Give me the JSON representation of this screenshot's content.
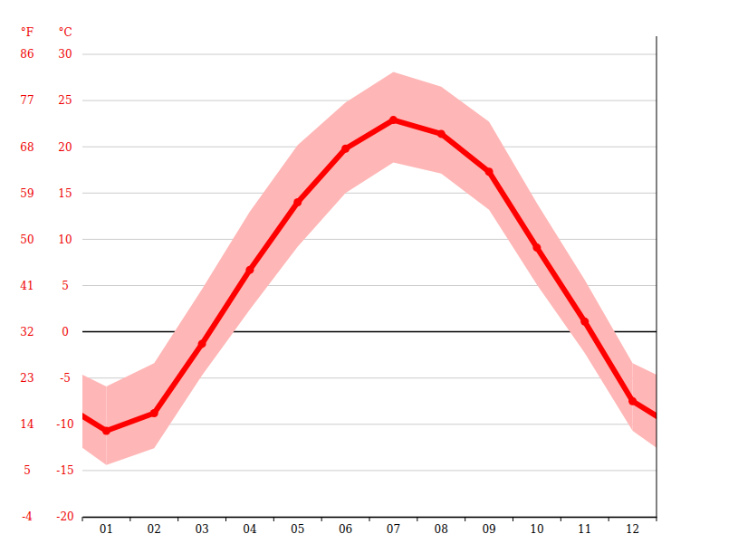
{
  "chart_data": {
    "type": "line",
    "y_label": "°C",
    "y2_label": "°F",
    "categories": [
      "01",
      "02",
      "03",
      "04",
      "05",
      "06",
      "07",
      "08",
      "09",
      "10",
      "11",
      "12"
    ],
    "series": [
      {
        "type": "line",
        "color": "#ff0000",
        "marker": "circle",
        "values": [
          -10.7,
          -8.8,
          -1.3,
          6.7,
          14.0,
          19.8,
          22.9,
          21.4,
          17.3,
          9.1,
          1.1,
          -7.5
        ]
      },
      {
        "type": "range",
        "color": "#ffb6b6",
        "low": [
          -14.4,
          -12.6,
          -4.7,
          2.4,
          9.2,
          15.0,
          18.3,
          17.1,
          13.2,
          5.1,
          -2.3,
          -10.7
        ],
        "high": [
          -5.9,
          -3.4,
          4.6,
          13.0,
          20.2,
          24.8,
          28.1,
          26.5,
          22.7,
          13.9,
          5.6,
          -3.4
        ]
      }
    ],
    "ylim": [
      -20,
      30
    ],
    "yticks": [
      -20,
      -15,
      -10,
      -5,
      0,
      5,
      10,
      15,
      20,
      25,
      30
    ],
    "y2lim": [
      -4,
      86
    ],
    "y2ticks": [
      -4,
      5,
      14,
      23,
      32,
      41,
      50,
      59,
      68,
      77,
      86
    ],
    "grid": true
  }
}
